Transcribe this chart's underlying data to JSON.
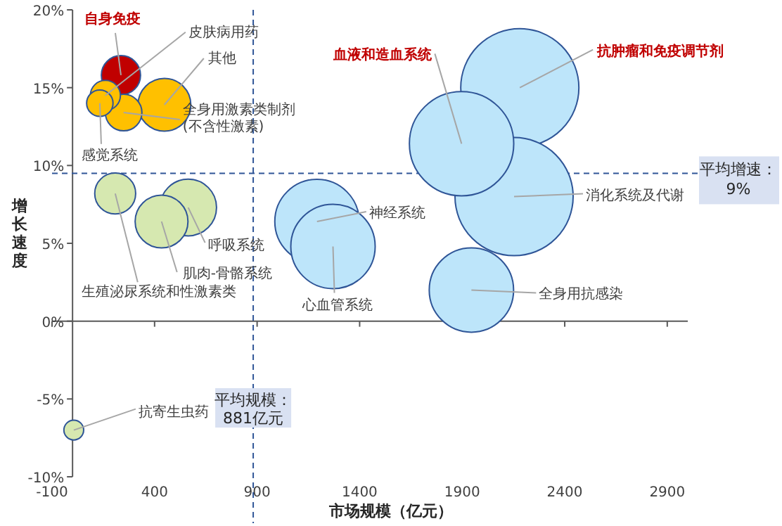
{
  "chart_data": {
    "type": "bubble",
    "xlabel": "市场规模（亿元）",
    "ylabel": "增长速度",
    "xlim": [
      -100,
      3000
    ],
    "ylim": [
      -10,
      20
    ],
    "xticks": [
      -100,
      400,
      900,
      1400,
      1900,
      2400,
      2900
    ],
    "yticks": [
      {
        "value": -10,
        "label": "-10%"
      },
      {
        "value": -5,
        "label": "-5%"
      },
      {
        "value": 0,
        "label": "0%"
      },
      {
        "value": 5,
        "label": "5%"
      },
      {
        "value": 10,
        "label": "10%"
      },
      {
        "value": 15,
        "label": "15%"
      },
      {
        "value": 20,
        "label": "20%"
      }
    ],
    "series": [
      {
        "color": "#c00000",
        "x": [
          236
        ],
        "values": [
          15.8
        ],
        "sizes": [
          0.11
        ]
      },
      {
        "color": "#ffc000",
        "x": [
          160,
          448,
          249,
          133
        ],
        "values": [
          14.5,
          13.9,
          13.4,
          14.0
        ],
        "sizes": [
          0.065,
          0.2,
          0.096,
          0.05
        ]
      },
      {
        "color": "#d6e8b0",
        "x": [
          208,
          564,
          434,
          6
        ],
        "values": [
          8.2,
          7.3,
          6.4,
          -7.0
        ],
        "sizes": [
          0.12,
          0.23,
          0.2,
          0.028
        ]
      },
      {
        "color": "#bde5fa",
        "x": [
          1192,
          1270,
          1897,
          2181,
          2153,
          1945
        ],
        "values": [
          6.4,
          4.8,
          11.4,
          15.0,
          8.0,
          2.0
        ],
        "sizes": [
          0.51,
          0.51,
          0.78,
          1,
          1,
          0.51
        ]
      }
    ],
    "annotations": [
      {
        "text": "自身免疫",
        "x": 236,
        "y": 15.8
      },
      {
        "text": "皮肤病用药",
        "x": 160,
        "y": 14.5
      },
      {
        "text": "其他",
        "x": 448,
        "y": 13.9
      },
      {
        "text": "全身用激素类制剂\n(不含性激素)",
        "x": 249,
        "y": 13.4
      },
      {
        "text": "感觉系统",
        "x": 133,
        "y": 14.0
      },
      {
        "text": "生殖泌尿系统和性激素类",
        "x": 208,
        "y": 8.2
      },
      {
        "text": "呼吸系统",
        "x": 564,
        "y": 7.3
      },
      {
        "text": "肌肉-骨骼系统",
        "x": 434,
        "y": 6.4
      },
      {
        "text": "神经系统",
        "x": 1192,
        "y": 6.4
      },
      {
        "text": "心血管系统",
        "x": 1270,
        "y": 4.8
      },
      {
        "text": "血液和造血系统",
        "x": 1897,
        "y": 11.4
      },
      {
        "text": "抗肿瘤和免疫调节剂",
        "x": 2181,
        "y": 15.0
      },
      {
        "text": "消化系统及代谢",
        "x": 2153,
        "y": 8.0
      },
      {
        "text": "全身用抗感染",
        "x": 1945,
        "y": 2.0
      },
      {
        "text": "抗寄生虫药",
        "x": 6,
        "y": -7.0
      }
    ],
    "ref_lines": [
      {
        "axis": "x",
        "value": 881,
        "label": "平均规模：\n881亿元",
        "color": "#2f5597",
        "line_style": "dashed"
      },
      {
        "axis": "y",
        "value": 9.5,
        "label": "平均增速：\n9%",
        "color": "#2f5597",
        "line_style": "dashed"
      }
    ]
  }
}
